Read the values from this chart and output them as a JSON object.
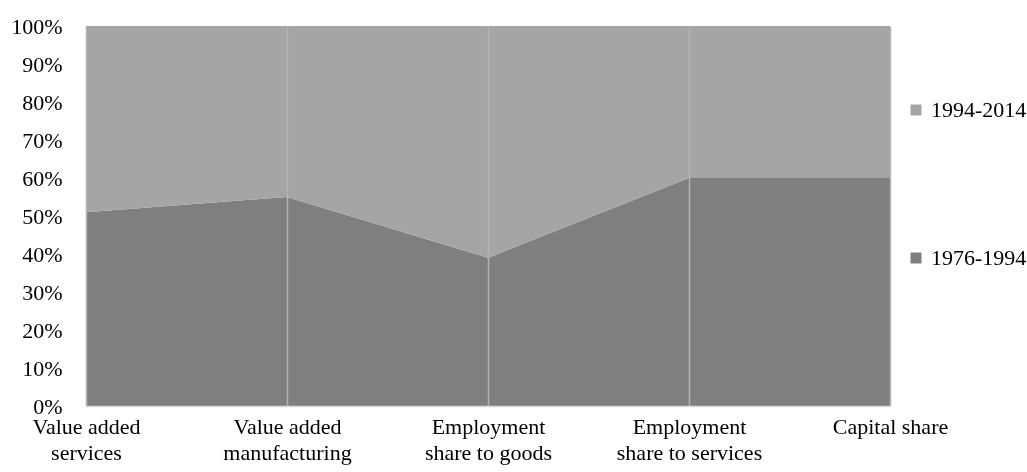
{
  "chart_data": {
    "type": "area",
    "categories": [
      "Value added services",
      "Value added manufacturing",
      "Employment share to goods",
      "Employment share to services",
      "Capital share"
    ],
    "series": [
      {
        "name": "1976-1994",
        "color": "#7f7f7f",
        "values": [
          51,
          55,
          39,
          60,
          60
        ]
      },
      {
        "name": "1994-2014",
        "color": "#a5a5a5",
        "values": [
          49,
          45,
          61,
          40,
          40
        ]
      }
    ],
    "stacked": true,
    "ylim": [
      0,
      100
    ],
    "yticks": [
      {
        "value": 0,
        "label": "0%"
      },
      {
        "value": 10,
        "label": "10%"
      },
      {
        "value": 20,
        "label": "20%"
      },
      {
        "value": 30,
        "label": "30%"
      },
      {
        "value": 40,
        "label": "40%"
      },
      {
        "value": 50,
        "label": "50%"
      },
      {
        "value": 60,
        "label": "60%"
      },
      {
        "value": 70,
        "label": "70%"
      },
      {
        "value": 80,
        "label": "80%"
      },
      {
        "value": 90,
        "label": "90%"
      },
      {
        "value": 100,
        "label": "100%"
      }
    ],
    "grid": "x",
    "legend": "right"
  }
}
